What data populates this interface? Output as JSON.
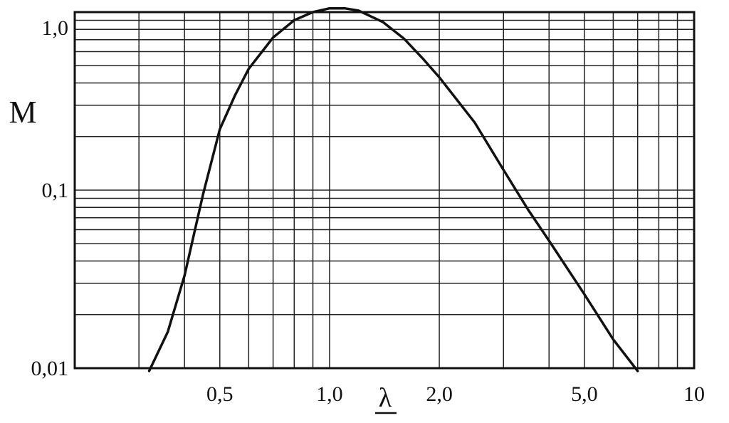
{
  "chart_data": {
    "type": "line",
    "title": "",
    "xlabel": "λ",
    "ylabel": "M",
    "xscale": "log",
    "yscale": "log",
    "xlim": [
      0.2,
      10
    ],
    "ylim": [
      0.01,
      1.0
    ],
    "grid": true,
    "x_ticks": [
      {
        "value": 0.5,
        "label": "0,5"
      },
      {
        "value": 1.0,
        "label": "1,0"
      },
      {
        "value": 2.0,
        "label": "2,0"
      },
      {
        "value": 5.0,
        "label": "5,0"
      },
      {
        "value": 10,
        "label": "10"
      }
    ],
    "y_ticks": [
      {
        "value": 0.01,
        "label": "0,01"
      },
      {
        "value": 0.1,
        "label": "0,1"
      },
      {
        "value": 1.0,
        "label": "1,0"
      }
    ],
    "series": [
      {
        "x": [
          0.32,
          0.36,
          0.4,
          0.45,
          0.5,
          0.55,
          0.6,
          0.7,
          0.8,
          0.9,
          1.0,
          1.1,
          1.2,
          1.4,
          1.6,
          1.8,
          2.0,
          2.5,
          3.0,
          3.5,
          4.0,
          5.0,
          6.0,
          7.0
        ],
        "y": [
          0.0095,
          0.016,
          0.033,
          0.095,
          0.22,
          0.34,
          0.48,
          0.72,
          0.9,
          1.0,
          1.05,
          1.05,
          1.02,
          0.88,
          0.71,
          0.55,
          0.43,
          0.24,
          0.13,
          0.078,
          0.052,
          0.026,
          0.0145,
          0.0095
        ]
      }
    ]
  }
}
